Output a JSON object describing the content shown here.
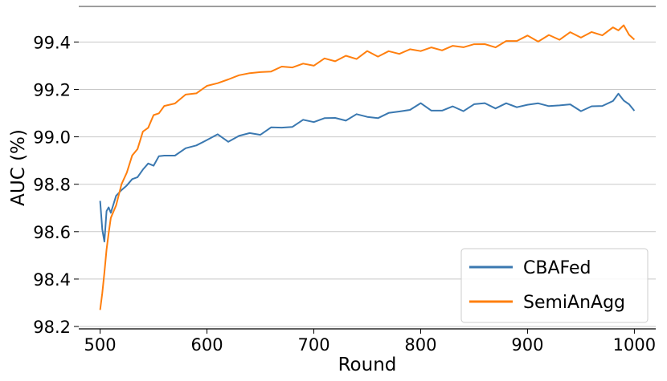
{
  "chart_data": {
    "type": "line",
    "xlabel": "Round",
    "ylabel": "AUC (%)",
    "xlim": [
      480,
      1020
    ],
    "ylim": [
      98.19,
      99.55
    ],
    "xticks": [
      500,
      600,
      700,
      800,
      900,
      1000
    ],
    "yticks": [
      98.2,
      98.4,
      98.6,
      98.8,
      99.0,
      99.2,
      99.4
    ],
    "xtick_labels": [
      "500",
      "600",
      "700",
      "800",
      "900",
      "1000"
    ],
    "ytick_labels": [
      "98.2",
      "98.4",
      "98.6",
      "98.8",
      "99.0",
      "99.2",
      "99.4"
    ],
    "grid": "horizontal",
    "legend_position": "bottom-right",
    "x": [
      500,
      502,
      504,
      506,
      508,
      510,
      515,
      520,
      525,
      530,
      535,
      540,
      545,
      550,
      555,
      560,
      570,
      580,
      590,
      600,
      610,
      620,
      630,
      640,
      650,
      660,
      670,
      680,
      690,
      700,
      710,
      720,
      730,
      740,
      750,
      760,
      770,
      780,
      790,
      800,
      810,
      820,
      830,
      840,
      850,
      860,
      870,
      880,
      890,
      900,
      910,
      920,
      930,
      940,
      950,
      960,
      970,
      980,
      985,
      990,
      995,
      1000
    ],
    "series": [
      {
        "name": "CBAFed",
        "color": "#3a78b0",
        "values": [
          98.73,
          98.6,
          98.57,
          98.68,
          98.7,
          98.69,
          98.74,
          98.78,
          98.8,
          98.81,
          98.84,
          98.86,
          98.88,
          98.89,
          98.91,
          98.92,
          98.93,
          98.94,
          98.97,
          98.99,
          99.0,
          98.99,
          99.0,
          99.01,
          99.02,
          99.03,
          99.04,
          99.05,
          99.06,
          99.07,
          99.08,
          99.07,
          99.08,
          99.09,
          99.08,
          99.09,
          99.09,
          99.11,
          99.12,
          99.13,
          99.12,
          99.11,
          99.12,
          99.12,
          99.13,
          99.14,
          99.13,
          99.13,
          99.13,
          99.14,
          99.13,
          99.14,
          99.13,
          99.13,
          99.12,
          99.12,
          99.13,
          99.16,
          99.17,
          99.16,
          99.14,
          99.11
        ]
      },
      {
        "name": "SemiAnAgg",
        "color": "#ff7f0e",
        "values": [
          98.27,
          98.34,
          98.43,
          98.52,
          98.6,
          98.65,
          98.72,
          98.79,
          98.86,
          98.91,
          98.96,
          99.01,
          99.05,
          99.08,
          99.11,
          99.12,
          99.15,
          99.17,
          99.19,
          99.21,
          99.23,
          99.24,
          99.26,
          99.27,
          99.27,
          99.28,
          99.29,
          99.3,
          99.3,
          99.31,
          99.32,
          99.33,
          99.33,
          99.34,
          99.35,
          99.35,
          99.35,
          99.36,
          99.36,
          99.37,
          99.37,
          99.37,
          99.38,
          99.38,
          99.39,
          99.39,
          99.38,
          99.4,
          99.41,
          99.42,
          99.41,
          99.42,
          99.42,
          99.43,
          99.43,
          99.43,
          99.44,
          99.45,
          99.46,
          99.46,
          99.44,
          99.41
        ]
      }
    ]
  }
}
